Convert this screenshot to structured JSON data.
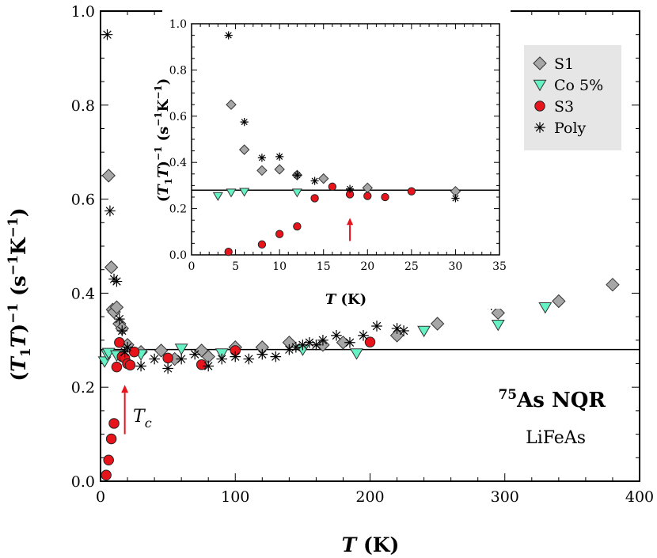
{
  "chart_data": [
    {
      "type": "scatter",
      "name": "main",
      "xlabel_main": "T",
      "xlabel_unit": "(K)",
      "ylabel_pre": "(",
      "ylabel_t1": "T",
      "ylabel_sub": "1",
      "ylabel_t": "T",
      "ylabel_post": ")",
      "ylabel_exp": "−1",
      "ylabel_unit_open": "(s",
      "ylabel_unit_exp1": "−1",
      "ylabel_unit_k": "K",
      "ylabel_unit_exp2": "−1",
      "ylabel_unit_close": ")",
      "xlim": [
        0,
        400
      ],
      "ylim": [
        0,
        1.0
      ],
      "xticks": [
        0,
        100,
        200,
        300,
        400
      ],
      "xtick_labels": [
        "0",
        "100",
        "200",
        "300",
        "400"
      ],
      "yticks": [
        0,
        0.2,
        0.4,
        0.6,
        0.8,
        1.0
      ],
      "ytick_labels": [
        "0.0",
        "0.2",
        "0.4",
        "0.6",
        "0.8",
        "1.0"
      ],
      "hline": 0.28,
      "series": [
        {
          "name": "S1",
          "marker": "diamond",
          "color": "#a6a6a6",
          "points": [
            [
              6,
              0.65
            ],
            [
              8,
              0.455
            ],
            [
              9,
              0.365
            ],
            [
              10,
              0.36
            ],
            [
              12,
              0.37
            ],
            [
              14,
              0.335
            ],
            [
              16,
              0.325
            ],
            [
              20,
              0.29
            ],
            [
              30,
              0.275
            ],
            [
              45,
              0.278
            ],
            [
              55,
              0.26
            ],
            [
              75,
              0.278
            ],
            [
              80,
              0.265
            ],
            [
              100,
              0.285
            ],
            [
              120,
              0.285
            ],
            [
              140,
              0.295
            ],
            [
              165,
              0.29
            ],
            [
              180,
              0.295
            ],
            [
              220,
              0.31
            ],
            [
              250,
              0.335
            ],
            [
              295,
              0.358
            ],
            [
              340,
              0.383
            ],
            [
              380,
              0.418
            ]
          ]
        },
        {
          "name": "Co 5%",
          "marker": "triangle-down",
          "color": "#66f2c4",
          "points": [
            [
              3,
              0.255
            ],
            [
              5,
              0.27
            ],
            [
              6,
              0.273
            ],
            [
              12,
              0.268
            ],
            [
              30,
              0.27
            ],
            [
              60,
              0.282
            ],
            [
              90,
              0.272
            ],
            [
              150,
              0.28
            ],
            [
              190,
              0.272
            ],
            [
              240,
              0.32
            ],
            [
              295,
              0.333
            ],
            [
              330,
              0.37
            ]
          ]
        },
        {
          "name": "S3",
          "marker": "circle",
          "color": "#e8141c",
          "points": [
            [
              4.2,
              0.013
            ],
            [
              6,
              0.045
            ],
            [
              8,
              0.09
            ],
            [
              10,
              0.123
            ],
            [
              12,
              0.243
            ],
            [
              14,
              0.295
            ],
            [
              16,
              0.265
            ],
            [
              18,
              0.262
            ],
            [
              20,
              0.25
            ],
            [
              22,
              0.247
            ],
            [
              25,
              0.275
            ],
            [
              50,
              0.262
            ],
            [
              75,
              0.248
            ],
            [
              100,
              0.278
            ],
            [
              200,
              0.296
            ]
          ]
        },
        {
          "name": "Poly",
          "marker": "asterisk",
          "color": "#000000",
          "points": [
            [
              5,
              0.95
            ],
            [
              7,
              0.575
            ],
            [
              10,
              0.43
            ],
            [
              12,
              0.425
            ],
            [
              14,
              0.345
            ],
            [
              16,
              0.32
            ],
            [
              18,
              0.275
            ],
            [
              20,
              0.285
            ],
            [
              30,
              0.245
            ],
            [
              40,
              0.26
            ],
            [
              50,
              0.24
            ],
            [
              60,
              0.26
            ],
            [
              70,
              0.27
            ],
            [
              80,
              0.245
            ],
            [
              90,
              0.26
            ],
            [
              100,
              0.265
            ],
            [
              110,
              0.26
            ],
            [
              120,
              0.27
            ],
            [
              130,
              0.265
            ],
            [
              140,
              0.28
            ],
            [
              145,
              0.285
            ],
            [
              150,
              0.29
            ],
            [
              155,
              0.295
            ],
            [
              160,
              0.29
            ],
            [
              165,
              0.3
            ],
            [
              175,
              0.31
            ],
            [
              185,
              0.295
            ],
            [
              195,
              0.31
            ],
            [
              205,
              0.33
            ],
            [
              220,
              0.325
            ],
            [
              225,
              0.32
            ],
            [
              290,
              0.375
            ]
          ]
        }
      ],
      "arrow": {
        "x": 18,
        "y_from": 0.1,
        "y_to": 0.205
      },
      "annotation_tc_main": "T",
      "annotation_tc_sub": "c",
      "annotation_nqr_sup": "75",
      "annotation_nqr": "As NQR",
      "annotation_material": "LiFeAs"
    },
    {
      "type": "scatter",
      "name": "inset",
      "xlabel_main": "T",
      "xlabel_unit": "(K)",
      "xlim": [
        0,
        35
      ],
      "ylim": [
        0,
        1.0
      ],
      "xticks": [
        0,
        5,
        10,
        15,
        20,
        25,
        30,
        35
      ],
      "xtick_labels": [
        "0",
        "5",
        "10",
        "15",
        "20",
        "25",
        "30",
        "35"
      ],
      "yticks": [
        0,
        0.2,
        0.4,
        0.6,
        0.8,
        1.0
      ],
      "ytick_labels": [
        "0.0",
        "0.2",
        "0.4",
        "0.6",
        "0.8",
        "1.0"
      ],
      "hline": 0.28,
      "series": [
        {
          "name": "S1",
          "marker": "diamond",
          "color": "#a6a6a6",
          "points": [
            [
              4.5,
              0.65
            ],
            [
              6,
              0.455
            ],
            [
              8,
              0.365
            ],
            [
              10,
              0.37
            ],
            [
              12,
              0.345
            ],
            [
              15,
              0.33
            ],
            [
              20,
              0.29
            ],
            [
              30,
              0.275
            ]
          ]
        },
        {
          "name": "Co 5%",
          "marker": "triangle-down",
          "color": "#66f2c4",
          "points": [
            [
              3,
              0.255
            ],
            [
              4.5,
              0.27
            ],
            [
              6,
              0.273
            ],
            [
              12,
              0.27
            ]
          ]
        },
        {
          "name": "S3",
          "marker": "circle",
          "color": "#e8141c",
          "points": [
            [
              4.2,
              0.013
            ],
            [
              8,
              0.045
            ],
            [
              10,
              0.09
            ],
            [
              12,
              0.123
            ],
            [
              14,
              0.245
            ],
            [
              16,
              0.295
            ],
            [
              18,
              0.262
            ],
            [
              20,
              0.255
            ],
            [
              22,
              0.25
            ],
            [
              25,
              0.275
            ]
          ]
        },
        {
          "name": "Poly",
          "marker": "asterisk",
          "color": "#000000",
          "points": [
            [
              4.2,
              0.95
            ],
            [
              6,
              0.575
            ],
            [
              8,
              0.42
            ],
            [
              10,
              0.425
            ],
            [
              12,
              0.345
            ],
            [
              14,
              0.32
            ],
            [
              18,
              0.285
            ],
            [
              30,
              0.245
            ]
          ]
        }
      ],
      "arrow": {
        "x": 18,
        "y_from": 0.06,
        "y_to": 0.16
      }
    }
  ],
  "legend": {
    "items": [
      {
        "label": "S1",
        "marker": "diamond",
        "color": "#a6a6a6"
      },
      {
        "label": "Co 5%",
        "marker": "triangle-down",
        "color": "#66f2c4"
      },
      {
        "label": "S3",
        "marker": "circle",
        "color": "#e8141c"
      },
      {
        "label": "Poly",
        "marker": "asterisk",
        "color": "#000000"
      }
    ],
    "background": "#e6e6e6"
  },
  "colors": {
    "arrow": "#e8141c",
    "axis": "#000000"
  }
}
